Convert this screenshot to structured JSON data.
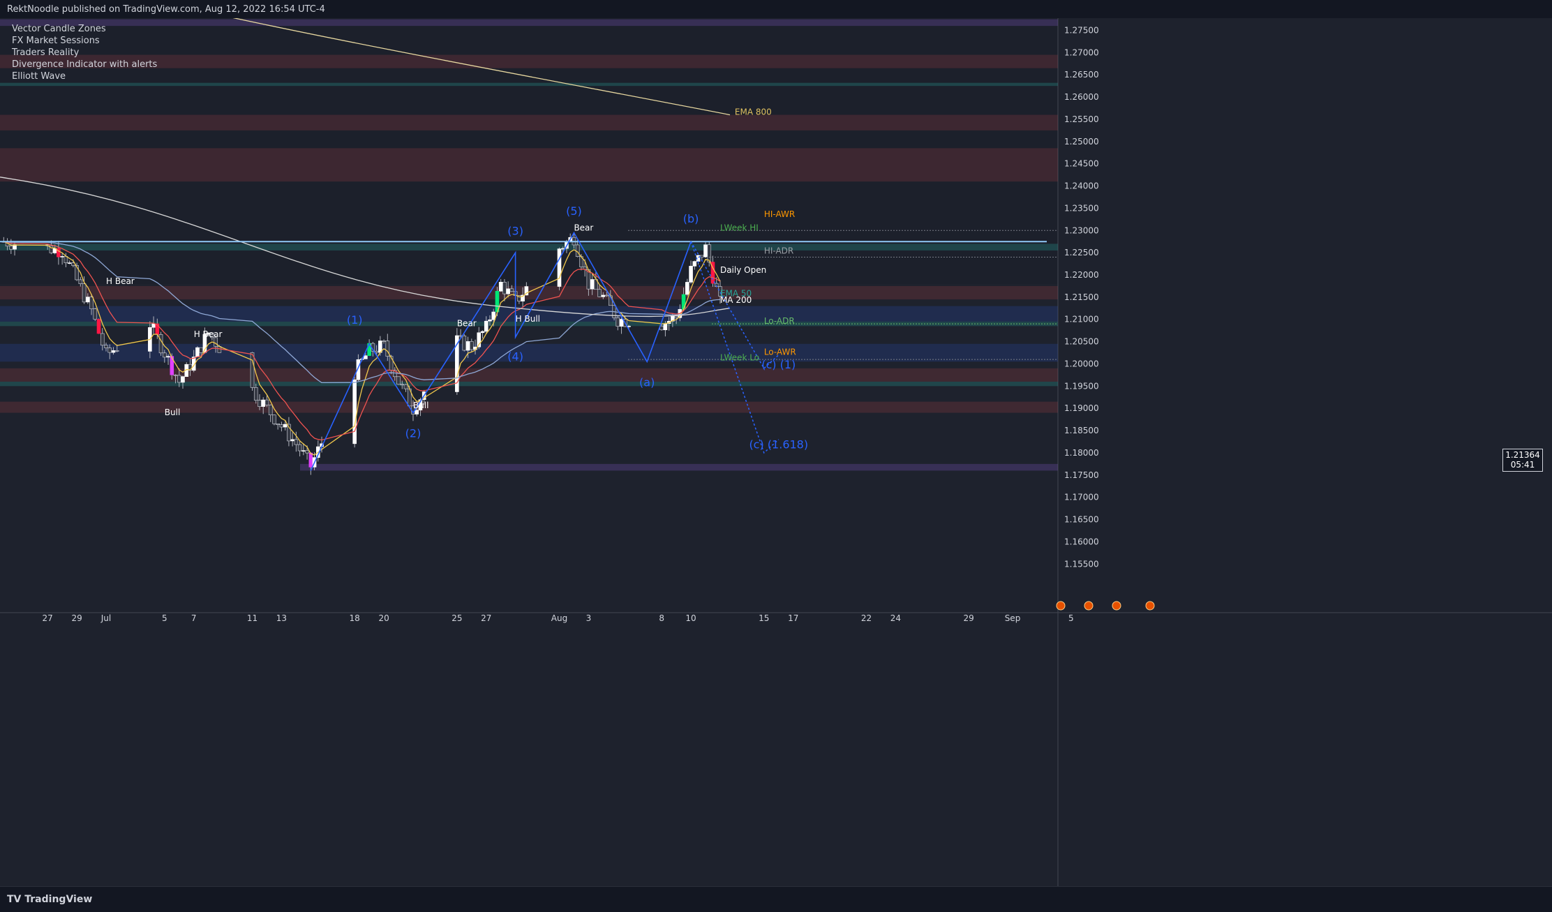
{
  "header": {
    "text": "RektNoodle published on TradingView.com, Aug 12, 2022 16:54 UTC-4"
  },
  "legend": {
    "items": [
      "Vector Candle Zones",
      "FX Market Sessions",
      "Traders Reality",
      "Divergence Indicator with alerts",
      "Elliott Wave"
    ]
  },
  "footer": {
    "logo": "TradingView"
  },
  "price_box": {
    "price": "1.21364",
    "timer": "05:41"
  },
  "colors": {
    "bg": "#1e222d",
    "up": "#ffffff",
    "down": "#d1d4dc",
    "vector_green": "#00e676",
    "vector_red": "#ff1744",
    "vector_magenta": "#e040fb",
    "wave": "#2962ff",
    "resistance": "#90caf9"
  },
  "chart_data": {
    "type": "candlestick",
    "title": "",
    "ylim": [
      1.145,
      1.279
    ],
    "y_ticks": [
      "1.27500",
      "1.27000",
      "1.26500",
      "1.26000",
      "1.25500",
      "1.25000",
      "1.24500",
      "1.24000",
      "1.23500",
      "1.23000",
      "1.22500",
      "1.22000",
      "1.21500",
      "1.21000",
      "1.20500",
      "1.20000",
      "1.19500",
      "1.19000",
      "1.18500",
      "1.18000",
      "1.17500",
      "1.17000",
      "1.16500",
      "1.16000",
      "1.15500"
    ],
    "x_ticks": [
      {
        "label": "27",
        "date": "2022-06-27"
      },
      {
        "label": "29",
        "date": "2022-06-29"
      },
      {
        "label": "Jul",
        "date": "2022-07-01"
      },
      {
        "label": "5",
        "date": "2022-07-05"
      },
      {
        "label": "7",
        "date": "2022-07-07"
      },
      {
        "label": "11",
        "date": "2022-07-11"
      },
      {
        "label": "13",
        "date": "2022-07-13"
      },
      {
        "label": "18",
        "date": "2022-07-18"
      },
      {
        "label": "20",
        "date": "2022-07-20"
      },
      {
        "label": "25",
        "date": "2022-07-25"
      },
      {
        "label": "27",
        "date": "2022-07-27"
      },
      {
        "label": "Aug",
        "date": "2022-08-01"
      },
      {
        "label": "3",
        "date": "2022-08-03"
      },
      {
        "label": "8",
        "date": "2022-08-08"
      },
      {
        "label": "10",
        "date": "2022-08-10"
      },
      {
        "label": "15",
        "date": "2022-08-15"
      },
      {
        "label": "17",
        "date": "2022-08-17"
      },
      {
        "label": "22",
        "date": "2022-08-22"
      },
      {
        "label": "24",
        "date": "2022-08-24"
      },
      {
        "label": "29",
        "date": "2022-08-29"
      },
      {
        "label": "Sep",
        "date": "2022-09-01"
      },
      {
        "label": "5",
        "date": "2022-09-05"
      }
    ],
    "price_anchors": [
      [
        "2022-06-24",
        1.2275
      ],
      [
        "2022-06-28",
        1.2255
      ],
      [
        "2022-06-30",
        1.212
      ],
      [
        "2022-07-01",
        1.202
      ],
      [
        "2022-07-04",
        1.209
      ],
      [
        "2022-07-06",
        1.196
      ],
      [
        "2022-07-07",
        1.201
      ],
      [
        "2022-07-08",
        1.207
      ],
      [
        "2022-07-12",
        1.19
      ],
      [
        "2022-07-14",
        1.182
      ],
      [
        "2022-07-15",
        1.177
      ],
      [
        "2022-07-18",
        1.198
      ],
      [
        "2022-07-19",
        1.203
      ],
      [
        "2022-07-20",
        1.204
      ],
      [
        "2022-07-21",
        1.196
      ],
      [
        "2022-07-22",
        1.19
      ],
      [
        "2022-07-25",
        1.205
      ],
      [
        "2022-07-26",
        1.204
      ],
      [
        "2022-07-27",
        1.208
      ],
      [
        "2022-07-28",
        1.218
      ],
      [
        "2022-07-29",
        1.214
      ],
      [
        "2022-08-01",
        1.226
      ],
      [
        "2022-08-02",
        1.2285
      ],
      [
        "2022-08-03",
        1.218
      ],
      [
        "2022-08-04",
        1.215
      ],
      [
        "2022-08-05",
        1.21
      ],
      [
        "2022-08-08",
        1.209
      ],
      [
        "2022-08-09",
        1.2105
      ],
      [
        "2022-08-10",
        1.221
      ],
      [
        "2022-08-11",
        1.226
      ],
      [
        "2022-08-12",
        1.2136
      ]
    ],
    "vector_candles": [
      {
        "date": "2022-06-28",
        "color": "red"
      },
      {
        "date": "2022-07-01",
        "color": "red"
      },
      {
        "date": "2022-07-05",
        "color": "red"
      },
      {
        "date": "2022-07-06",
        "color": "magenta"
      },
      {
        "date": "2022-07-15",
        "color": "magenta"
      },
      {
        "date": "2022-07-19",
        "color": "green"
      },
      {
        "date": "2022-07-28",
        "color": "green"
      },
      {
        "date": "2022-08-10",
        "color": "green"
      },
      {
        "date": "2022-08-12",
        "color": "red"
      }
    ],
    "zones": [
      {
        "from": 1.276,
        "to": 1.2775,
        "color": "purple"
      },
      {
        "from": 1.2665,
        "to": 1.2695,
        "color": "red"
      },
      {
        "from": 1.2625,
        "to": 1.2632,
        "color": "green"
      },
      {
        "from": 1.2525,
        "to": 1.256,
        "color": "red"
      },
      {
        "from": 1.241,
        "to": 1.2485,
        "color": "red"
      },
      {
        "from": 1.2255,
        "to": 1.227,
        "color": "green"
      },
      {
        "from": 1.2145,
        "to": 1.2175,
        "color": "red"
      },
      {
        "from": 1.2095,
        "to": 1.213,
        "color": "navy"
      },
      {
        "from": 1.2085,
        "to": 1.2095,
        "color": "green"
      },
      {
        "from": 1.2005,
        "to": 1.2045,
        "color": "navy"
      },
      {
        "from": 1.196,
        "to": 1.199,
        "color": "red"
      },
      {
        "from": 1.195,
        "to": 1.196,
        "color": "green"
      },
      {
        "from": 1.189,
        "to": 1.1915,
        "color": "red"
      },
      {
        "from": 1.176,
        "to": 1.1775,
        "color": "purple"
      }
    ],
    "labels": [
      {
        "text": "EMA 800",
        "date": "2022-08-13",
        "price": 1.256,
        "color": "#e0c060"
      },
      {
        "text": "HI-AWR",
        "date": "2022-08-15",
        "price": 1.233,
        "color": "#ff9800"
      },
      {
        "text": "LWeek HI",
        "date": "2022-08-12",
        "price": 1.23,
        "color": "#4caf50"
      },
      {
        "text": "HI-ADR",
        "date": "2022-08-15",
        "price": 1.2248,
        "color": "#9aa0a6"
      },
      {
        "text": "Daily Open",
        "date": "2022-08-12",
        "price": 1.2205,
        "color": "#ffffff"
      },
      {
        "text": "EMA 50",
        "date": "2022-08-12",
        "price": 1.2152,
        "color": "#26a69a"
      },
      {
        "text": "MA 200",
        "date": "2022-08-12",
        "price": 1.2137,
        "color": "#ffffff"
      },
      {
        "text": "Lo-ADR",
        "date": "2022-08-15",
        "price": 1.209,
        "color": "#66bb6a"
      },
      {
        "text": "Lo-AWR",
        "date": "2022-08-15",
        "price": 1.202,
        "color": "#ff9800"
      },
      {
        "text": "LWeek Lo",
        "date": "2022-08-12",
        "price": 1.2008,
        "color": "#4caf50"
      },
      {
        "text": "H Bear",
        "date": "2022-07-01",
        "price": 1.218,
        "color": "#ffffff"
      },
      {
        "text": "H Bear",
        "date": "2022-07-07",
        "price": 1.206,
        "color": "#ffffff"
      },
      {
        "text": "Bull",
        "date": "2022-07-05",
        "price": 1.1885,
        "color": "#ffffff"
      },
      {
        "text": "Bear",
        "date": "2022-07-25",
        "price": 1.2085,
        "color": "#ffffff"
      },
      {
        "text": "Bull",
        "date": "2022-07-22",
        "price": 1.19,
        "color": "#ffffff"
      },
      {
        "text": "H Bull",
        "date": "2022-07-29",
        "price": 1.2095,
        "color": "#ffffff"
      },
      {
        "text": "Bear",
        "date": "2022-08-02",
        "price": 1.23,
        "color": "#ffffff"
      }
    ],
    "wave_labels": [
      {
        "text": "(1)",
        "date": "2022-07-18",
        "price": 1.209
      },
      {
        "text": "(2)",
        "date": "2022-07-22",
        "price": 1.1835
      },
      {
        "text": "(3)",
        "date": "2022-07-29",
        "price": 1.229
      },
      {
        "text": "(4)",
        "date": "2022-07-29",
        "price": 1.2008
      },
      {
        "text": "(5)",
        "date": "2022-08-02",
        "price": 1.2335
      },
      {
        "text": "(a)",
        "date": "2022-08-07",
        "price": 1.195
      },
      {
        "text": "(b)",
        "date": "2022-08-10",
        "price": 1.2318
      },
      {
        "text": "(c) (1)",
        "date": "2022-08-16",
        "price": 1.199
      },
      {
        "text": "(c) (1.618)",
        "date": "2022-08-16",
        "price": 1.181
      }
    ]
  }
}
